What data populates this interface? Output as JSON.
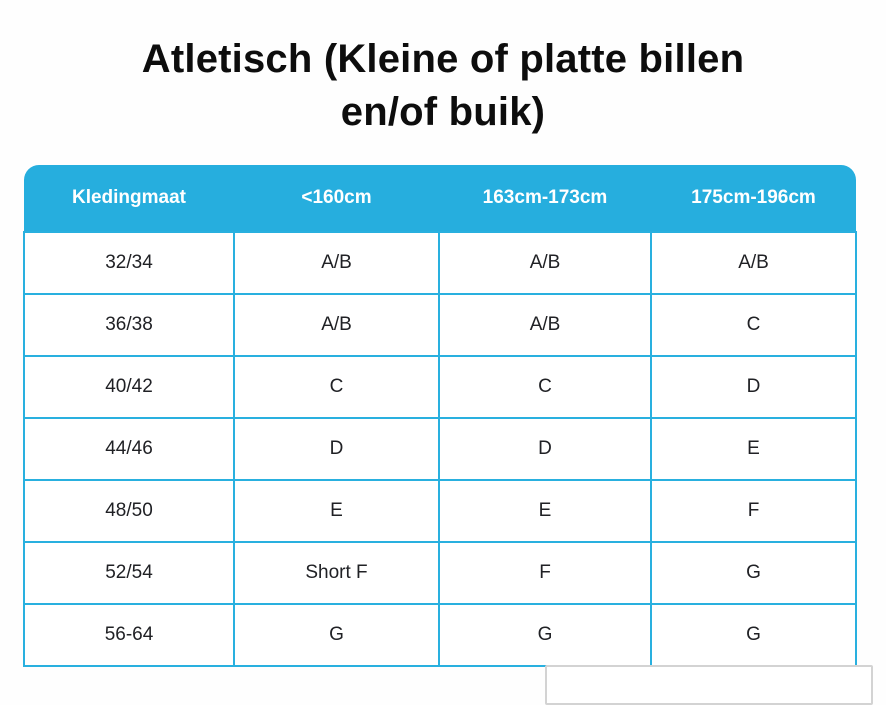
{
  "title": {
    "full": "Atletisch (Kleine of platte billen en/of buik)",
    "line1": "Atletisch (Kleine of platte billen",
    "line2": "en/of buik)"
  },
  "size_chart": {
    "columns": [
      "Kledingmaat",
      "<160cm",
      "163cm-173cm",
      "175cm-196cm"
    ],
    "rows": [
      [
        "32/34",
        "A/B",
        "A/B",
        "A/B"
      ],
      [
        "36/38",
        "A/B",
        "A/B",
        "C"
      ],
      [
        "40/42",
        "C",
        "C",
        "D"
      ],
      [
        "44/46",
        "D",
        "D",
        "E"
      ],
      [
        "48/50",
        "E",
        "E",
        "F"
      ],
      [
        "52/54",
        "Short F",
        "F",
        "G"
      ],
      [
        "56-64",
        "G",
        "G",
        "G"
      ]
    ]
  },
  "colors": {
    "accent_blue": "#26AEDE",
    "cell_border_blue": "#29B0DF",
    "header_text": "#FFFFFF",
    "body_text": "#202125",
    "title_text": "#0D0D0D",
    "overlay_border": "#D3D3D3",
    "page_background": "#FEFEFE"
  }
}
